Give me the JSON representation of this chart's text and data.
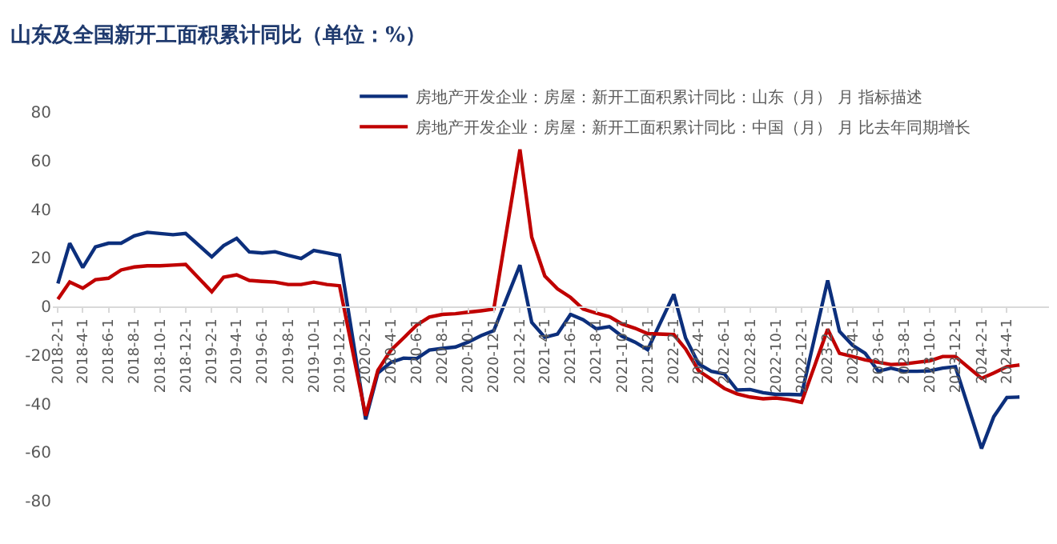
{
  "chart_data": {
    "type": "line",
    "title": "山东及全国新开工面积累计同比（单位：%）",
    "xlim": [
      "2018-01-20",
      "2024-07-10"
    ],
    "xticks": [
      {
        "value": "2018-02-01",
        "label": "2018-2-1"
      },
      {
        "value": "2018-04-01",
        "label": "2018-4-1"
      },
      {
        "value": "2018-06-01",
        "label": "2018-6-1"
      },
      {
        "value": "2018-08-01",
        "label": "2018-8-1"
      },
      {
        "value": "2018-10-01",
        "label": "2018-10-1"
      },
      {
        "value": "2018-12-01",
        "label": "2018-12-1"
      },
      {
        "value": "2019-02-01",
        "label": "2019-2-1"
      },
      {
        "value": "2019-04-01",
        "label": "2019-4-1"
      },
      {
        "value": "2019-06-01",
        "label": "2019-6-1"
      },
      {
        "value": "2019-08-01",
        "label": "2019-8-1"
      },
      {
        "value": "2019-10-01",
        "label": "2019-10-1"
      },
      {
        "value": "2019-12-01",
        "label": "2019-12-1"
      },
      {
        "value": "2020-02-01",
        "label": "2020-2-1"
      },
      {
        "value": "2020-04-01",
        "label": "2020-4-1"
      },
      {
        "value": "2020-06-01",
        "label": "2020-6-1"
      },
      {
        "value": "2020-08-01",
        "label": "2020-8-1"
      },
      {
        "value": "2020-10-01",
        "label": "2020-10-1"
      },
      {
        "value": "2020-12-01",
        "label": "2020-12-1"
      },
      {
        "value": "2021-02-01",
        "label": "2021-2-1"
      },
      {
        "value": "2021-04-01",
        "label": "2021-4-1"
      },
      {
        "value": "2021-06-01",
        "label": "2021-6-1"
      },
      {
        "value": "2021-08-01",
        "label": "2021-8-1"
      },
      {
        "value": "2021-10-01",
        "label": "2021-10-1"
      },
      {
        "value": "2021-12-01",
        "label": "2021-12-1"
      },
      {
        "value": "2022-02-01",
        "label": "2022-2-1"
      },
      {
        "value": "2022-04-01",
        "label": "2022-4-1"
      },
      {
        "value": "2022-06-01",
        "label": "2022-6-1"
      },
      {
        "value": "2022-08-01",
        "label": "2022-8-1"
      },
      {
        "value": "2022-10-01",
        "label": "2022-10-1"
      },
      {
        "value": "2022-12-01",
        "label": "2022-12-1"
      },
      {
        "value": "2023-02-01",
        "label": "2023-2-1"
      },
      {
        "value": "2023-04-01",
        "label": "2023-4-1"
      },
      {
        "value": "2023-06-01",
        "label": "2023-6-1"
      },
      {
        "value": "2023-08-01",
        "label": "2023-8-1"
      },
      {
        "value": "2023-10-01",
        "label": "2023-10-1"
      },
      {
        "value": "2023-12-01",
        "label": "2023-12-1"
      },
      {
        "value": "2024-02-01",
        "label": "2024-2-1"
      },
      {
        "value": "2024-04-01",
        "label": "2024-4-1"
      }
    ],
    "x": [
      "2018-02",
      "2018-03",
      "2018-04",
      "2018-05",
      "2018-06",
      "2018-07",
      "2018-08",
      "2018-09",
      "2018-10",
      "2018-11",
      "2018-12",
      "2019-02",
      "2019-03",
      "2019-04",
      "2019-05",
      "2019-06",
      "2019-07",
      "2019-08",
      "2019-09",
      "2019-10",
      "2019-11",
      "2019-12",
      "2020-02",
      "2020-03",
      "2020-04",
      "2020-05",
      "2020-06",
      "2020-07",
      "2020-08",
      "2020-09",
      "2020-10",
      "2020-11",
      "2020-12",
      "2021-02",
      "2021-03",
      "2021-04",
      "2021-05",
      "2021-06",
      "2021-07",
      "2021-08",
      "2021-09",
      "2021-10",
      "2021-11",
      "2021-12",
      "2022-02",
      "2022-03",
      "2022-04",
      "2022-05",
      "2022-06",
      "2022-07",
      "2022-08",
      "2022-09",
      "2022-10",
      "2022-11",
      "2022-12",
      "2023-02",
      "2023-03",
      "2023-04",
      "2023-05",
      "2023-06",
      "2023-07",
      "2023-08",
      "2023-09",
      "2023-10",
      "2023-11",
      "2023-12",
      "2024-02",
      "2024-03",
      "2024-04",
      "2024-05"
    ],
    "series": [
      {
        "name": "房地产开发企业：房屋：新开工面积累计同比：山东（月） 月 指标描述",
        "color": "#0c2f7c",
        "values": [
          9.4,
          26,
          16,
          24.5,
          26,
          26,
          29,
          30.5,
          30,
          29.5,
          30,
          20.4,
          25,
          28,
          22.4,
          22,
          22.5,
          21,
          19.7,
          23,
          22,
          21,
          -46.5,
          -27.4,
          -23,
          -21.3,
          -21.5,
          -18,
          -17.3,
          -16.7,
          -14.7,
          -12,
          -10,
          17,
          -6.6,
          -12.7,
          -11.4,
          -3.3,
          -5.5,
          -9.2,
          -8.3,
          -12.3,
          -14.7,
          -17.8,
          5,
          -13,
          -23.7,
          -26.7,
          -27.8,
          -34.4,
          -34.2,
          -35.5,
          -36.2,
          -36.2,
          -36.4,
          10.7,
          -10.3,
          -16,
          -19.3,
          -26.7,
          -25.4,
          -26.7,
          -26.7,
          -26.5,
          -25.4,
          -24.8,
          -58.5,
          -45.4,
          -37.5,
          -37.3
        ]
      },
      {
        "name": "房地产开发企业：房屋：新开工面积累计同比：中国（月） 月 比去年同期增长",
        "color": "#c00000",
        "values": [
          3,
          10,
          7.5,
          11,
          11.6,
          15,
          16.2,
          16.7,
          16.7,
          17,
          17.3,
          6,
          12,
          13,
          10.7,
          10.3,
          10,
          9,
          9,
          10,
          9,
          8.5,
          -45,
          -26.3,
          -18,
          -13,
          -7.7,
          -4.4,
          -3.3,
          -3,
          -2.4,
          -1.8,
          -1.1,
          64.6,
          28.5,
          12.5,
          7.2,
          3.7,
          -1.1,
          -2.8,
          -4.2,
          -7.2,
          -9,
          -11.2,
          -11.6,
          -17.5,
          -26.5,
          -30,
          -33.8,
          -36,
          -37.3,
          -38,
          -37.7,
          -38.4,
          -39.5,
          -9.4,
          -19.3,
          -20.6,
          -22,
          -23,
          -23.9,
          -23.7,
          -23,
          -22.4,
          -20.6,
          -20.6,
          -29.6,
          -27.4,
          -24.8,
          -24.1
        ]
      }
    ],
    "ylim": [
      -80,
      80
    ],
    "yticks": [
      -80,
      -60,
      -40,
      -20,
      0,
      20,
      40,
      60,
      80
    ],
    "legend": "top",
    "marker": "none",
    "line_style": "solid"
  }
}
